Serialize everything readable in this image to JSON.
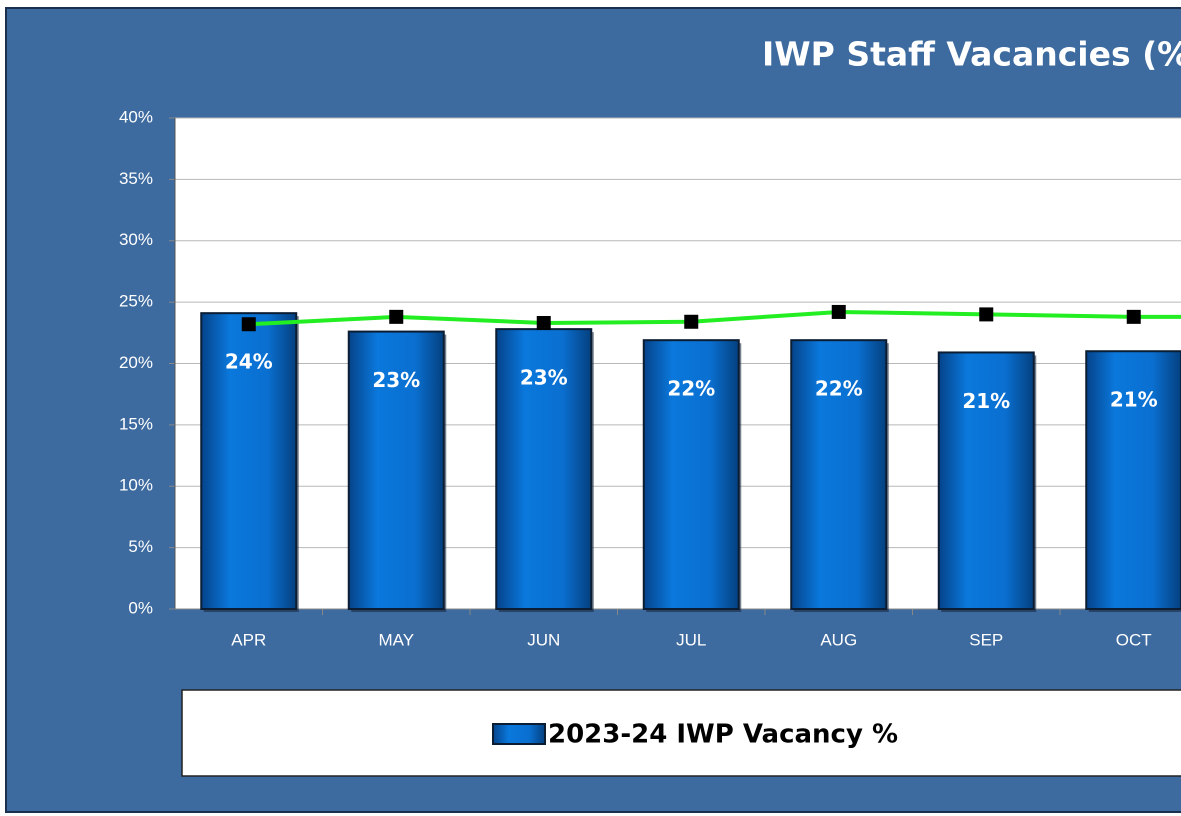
{
  "chart_data": {
    "type": "bar",
    "title": "IWP Staff Vacancies (%",
    "categories": [
      "APR",
      "MAY",
      "JUN",
      "JUL",
      "AUG",
      "SEP",
      "OCT"
    ],
    "series": [
      {
        "name": "2023-24 IWP Vacancy %",
        "type": "bar",
        "color": "#0a6fd0",
        "values": [
          24.1,
          22.6,
          22.8,
          21.9,
          21.9,
          20.9,
          21.0
        ],
        "value_labels": [
          "24%",
          "23%",
          "23%",
          "22%",
          "22%",
          "21%",
          "21%"
        ]
      },
      {
        "type": "line",
        "color": "#22ee22",
        "values": [
          23.2,
          23.8,
          23.3,
          23.4,
          24.2,
          24.0,
          23.8
        ]
      }
    ],
    "ylim": [
      0,
      40
    ],
    "yticks": [
      {
        "value": 0,
        "label": "0%"
      },
      {
        "value": 5,
        "label": "5%"
      },
      {
        "value": 10,
        "label": "10%"
      },
      {
        "value": 15,
        "label": "15%"
      },
      {
        "value": 20,
        "label": "20%"
      },
      {
        "value": 25,
        "label": "25%"
      },
      {
        "value": 30,
        "label": "30%"
      },
      {
        "value": 35,
        "label": "35%"
      },
      {
        "value": 40,
        "label": "40%"
      }
    ],
    "grid": true,
    "legend": "bottom"
  }
}
